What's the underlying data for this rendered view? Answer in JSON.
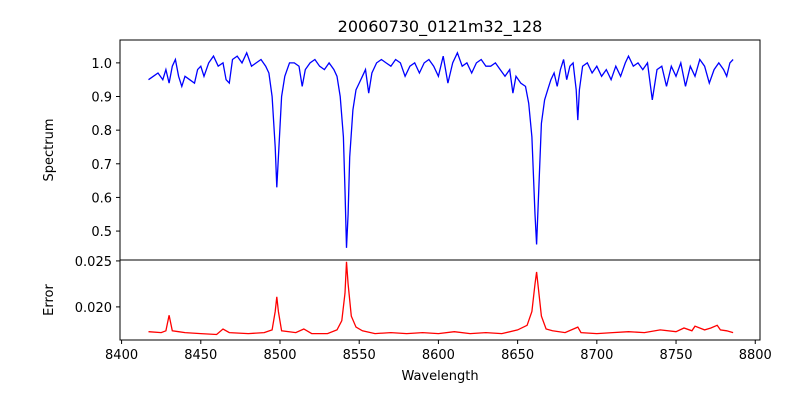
{
  "chart_data": [
    {
      "type": "line",
      "title": "20060730_0121m32_128",
      "xlabel": "",
      "ylabel": "Spectrum",
      "xlim": [
        8399,
        8803
      ],
      "ylim": [
        0.414,
        1.068
      ],
      "xticks": [
        8400,
        8450,
        8500,
        8550,
        8600,
        8650,
        8700,
        8750,
        8800
      ],
      "yticks": [
        0.5,
        0.6,
        0.7,
        0.8,
        0.9,
        1.0
      ],
      "ytick_labels": [
        "0.5",
        "0.6",
        "0.7",
        "0.8",
        "0.9",
        "1.0"
      ],
      "grid": false,
      "color": "#0000ff",
      "series": [
        {
          "name": "Spectrum",
          "x": [
            8417,
            8420,
            8423,
            8426,
            8428,
            8430,
            8432,
            8434,
            8436,
            8438,
            8440,
            8443,
            8446,
            8448,
            8450,
            8452,
            8455,
            8458,
            8461,
            8464,
            8466,
            8468,
            8470,
            8473,
            8476,
            8479,
            8482,
            8485,
            8488,
            8491,
            8493,
            8495,
            8497,
            8498,
            8499,
            8501,
            8503,
            8506,
            8509,
            8512,
            8514,
            8516,
            8519,
            8522,
            8525,
            8528,
            8531,
            8534,
            8536,
            8538,
            8540,
            8541,
            8542,
            8543,
            8544,
            8546,
            8548,
            8550,
            8552,
            8554,
            8556,
            8558,
            8561,
            8564,
            8567,
            8570,
            8573,
            8576,
            8579,
            8582,
            8585,
            8588,
            8591,
            8594,
            8597,
            8600,
            8603,
            8606,
            8609,
            8612,
            8615,
            8618,
            8621,
            8624,
            8627,
            8630,
            8633,
            8636,
            8639,
            8642,
            8645,
            8647,
            8649,
            8652,
            8655,
            8657,
            8659,
            8661,
            8662,
            8663,
            8665,
            8667,
            8669,
            8671,
            8673,
            8675,
            8677,
            8679,
            8681,
            8683,
            8685,
            8687,
            8688,
            8689,
            8691,
            8694,
            8697,
            8700,
            8703,
            8706,
            8709,
            8712,
            8715,
            8718,
            8720,
            8723,
            8726,
            8729,
            8732,
            8735,
            8738,
            8741,
            8744,
            8747,
            8750,
            8753,
            8756,
            8759,
            8762,
            8765,
            8768,
            8771,
            8774,
            8777,
            8780,
            8782,
            8784,
            8786
          ],
          "y": [
            0.95,
            0.96,
            0.97,
            0.95,
            0.98,
            0.94,
            0.99,
            1.01,
            0.96,
            0.93,
            0.96,
            0.95,
            0.94,
            0.98,
            0.99,
            0.96,
            1.0,
            1.02,
            0.99,
            1.0,
            0.95,
            0.94,
            1.01,
            1.02,
            1.0,
            1.03,
            0.99,
            1.0,
            1.01,
            0.99,
            0.97,
            0.9,
            0.75,
            0.63,
            0.72,
            0.9,
            0.96,
            1.0,
            1.0,
            0.99,
            0.93,
            0.98,
            1.0,
            1.01,
            0.99,
            0.98,
            1.0,
            0.98,
            0.96,
            0.9,
            0.78,
            0.62,
            0.45,
            0.55,
            0.72,
            0.86,
            0.92,
            0.94,
            0.96,
            0.98,
            0.91,
            0.97,
            1.0,
            1.01,
            1.0,
            0.99,
            1.01,
            1.0,
            0.96,
            0.99,
            1.0,
            0.97,
            1.0,
            1.01,
            0.99,
            0.96,
            1.02,
            0.94,
            1.0,
            1.03,
            0.99,
            1.0,
            0.97,
            1.0,
            1.01,
            0.99,
            0.99,
            1.0,
            0.98,
            0.96,
            0.98,
            0.91,
            0.96,
            0.94,
            0.93,
            0.88,
            0.78,
            0.55,
            0.46,
            0.58,
            0.82,
            0.89,
            0.92,
            0.95,
            0.97,
            0.93,
            0.98,
            1.01,
            0.95,
            0.99,
            1.0,
            0.92,
            0.83,
            0.92,
            0.99,
            1.0,
            0.97,
            0.99,
            0.96,
            0.98,
            0.95,
            0.99,
            0.96,
            1.0,
            1.02,
            0.99,
            1.0,
            0.98,
            1.0,
            0.89,
            0.98,
            0.99,
            0.93,
            0.99,
            0.96,
            1.0,
            0.93,
            0.99,
            0.96,
            1.01,
            0.99,
            0.94,
            0.98,
            1.0,
            0.98,
            0.96,
            1.0,
            1.01
          ]
        }
      ]
    },
    {
      "type": "line",
      "title": "",
      "xlabel": "Wavelength",
      "ylabel": "Error",
      "xlim": [
        8399,
        8803
      ],
      "ylim": [
        0.0164,
        0.0251
      ],
      "xticks": [
        8400,
        8450,
        8500,
        8550,
        8600,
        8650,
        8700,
        8750,
        8800
      ],
      "xtick_labels": [
        "8400",
        "8450",
        "8500",
        "8550",
        "8600",
        "8650",
        "8700",
        "8750",
        "8800"
      ],
      "yticks": [
        0.02,
        0.025
      ],
      "ytick_labels": [
        "0.020",
        "0.025"
      ],
      "grid": false,
      "color": "#ff0000",
      "series": [
        {
          "name": "Error",
          "x": [
            8417,
            8425,
            8428,
            8430,
            8432,
            8436,
            8440,
            8450,
            8460,
            8464,
            8468,
            8480,
            8490,
            8495,
            8497,
            8498,
            8499,
            8501,
            8510,
            8515,
            8520,
            8530,
            8536,
            8539,
            8541,
            8542,
            8543,
            8545,
            8548,
            8552,
            8560,
            8570,
            8580,
            8590,
            8600,
            8610,
            8620,
            8630,
            8640,
            8650,
            8656,
            8659,
            8661,
            8662,
            8663,
            8665,
            8668,
            8672,
            8680,
            8688,
            8690,
            8700,
            8710,
            8720,
            8730,
            8740,
            8750,
            8755,
            8760,
            8762,
            8768,
            8772,
            8776,
            8778,
            8782,
            8786
          ],
          "y": [
            0.0173,
            0.0172,
            0.0174,
            0.0191,
            0.0174,
            0.0173,
            0.0172,
            0.0171,
            0.017,
            0.0176,
            0.0172,
            0.0171,
            0.0172,
            0.0175,
            0.0195,
            0.0211,
            0.0195,
            0.0174,
            0.0172,
            0.0176,
            0.0171,
            0.0171,
            0.0175,
            0.0185,
            0.0215,
            0.0249,
            0.0225,
            0.019,
            0.0178,
            0.0174,
            0.0171,
            0.0172,
            0.0171,
            0.0172,
            0.0171,
            0.0173,
            0.0171,
            0.0172,
            0.0171,
            0.0175,
            0.018,
            0.0195,
            0.0225,
            0.0238,
            0.0222,
            0.019,
            0.0176,
            0.0174,
            0.0172,
            0.0178,
            0.0172,
            0.0171,
            0.0172,
            0.0173,
            0.0172,
            0.0175,
            0.0173,
            0.0177,
            0.0174,
            0.0179,
            0.0175,
            0.0177,
            0.018,
            0.0175,
            0.0174,
            0.0172
          ]
        }
      ]
    }
  ]
}
